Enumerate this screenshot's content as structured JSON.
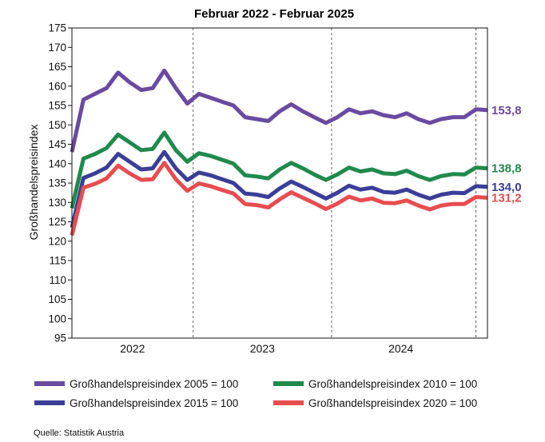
{
  "chart_data": {
    "type": "line",
    "title": "Februar 2022 - Februar 2025",
    "ylabel": "Großhandelspreisindex",
    "ylim": [
      95,
      175
    ],
    "yticks": [
      95,
      100,
      105,
      110,
      115,
      120,
      125,
      130,
      135,
      140,
      145,
      150,
      155,
      160,
      165,
      170,
      175
    ],
    "x_labels": [
      "2022",
      "2023",
      "2024"
    ],
    "x": [
      "2022-02",
      "2022-03",
      "2022-04",
      "2022-05",
      "2022-06",
      "2022-07",
      "2022-08",
      "2022-09",
      "2022-10",
      "2022-11",
      "2022-12",
      "2023-01",
      "2023-02",
      "2023-03",
      "2023-04",
      "2023-05",
      "2023-06",
      "2023-07",
      "2023-08",
      "2023-09",
      "2023-10",
      "2023-11",
      "2023-12",
      "2024-01",
      "2024-02",
      "2024-03",
      "2024-04",
      "2024-05",
      "2024-06",
      "2024-07",
      "2024-08",
      "2024-09",
      "2024-10",
      "2024-11",
      "2024-12",
      "2025-01",
      "2025-02"
    ],
    "grid": "dashed",
    "legend_position": "bottom",
    "series": [
      {
        "name": "Großhandelspreisindex 2005 = 100",
        "color": "#6a4aa0",
        "end_label": "153,8",
        "values": [
          143.0,
          156.5,
          158.0,
          159.5,
          163.5,
          161.0,
          159.0,
          159.5,
          164.0,
          159.5,
          155.5,
          158.0,
          157.0,
          156.0,
          155.0,
          152.0,
          151.5,
          151.0,
          153.5,
          155.3,
          153.5,
          152.0,
          150.5,
          152.0,
          154.0,
          153.0,
          153.5,
          152.5,
          152.0,
          153.0,
          151.5,
          150.5,
          151.5,
          152.0,
          152.0,
          154.0,
          153.8
        ]
      },
      {
        "name": "Großhandelspreisindex 2010 = 100",
        "color": "#1f8a4c",
        "end_label": "138,8",
        "values": [
          128.5,
          141.3,
          142.5,
          144.0,
          147.5,
          145.5,
          143.5,
          143.8,
          148.0,
          143.5,
          140.5,
          142.7,
          142.0,
          141.0,
          140.0,
          137.0,
          136.7,
          136.2,
          138.5,
          140.2,
          138.8,
          137.2,
          135.8,
          137.2,
          139.0,
          138.0,
          138.5,
          137.5,
          137.3,
          138.2,
          136.8,
          135.8,
          136.8,
          137.3,
          137.2,
          139.0,
          138.8
        ]
      },
      {
        "name": "Großhandelspreisindex 2015 = 100",
        "color": "#3a3e99",
        "end_label": "134,0",
        "values": [
          123.5,
          136.3,
          137.5,
          139.0,
          142.5,
          140.5,
          138.5,
          138.8,
          143.0,
          138.8,
          135.8,
          137.7,
          137.0,
          136.0,
          135.0,
          132.3,
          132.0,
          131.4,
          133.6,
          135.4,
          134.0,
          132.5,
          131.0,
          132.5,
          134.3,
          133.3,
          133.8,
          132.7,
          132.5,
          133.3,
          132.0,
          131.0,
          132.0,
          132.5,
          132.4,
          134.2,
          134.0
        ]
      },
      {
        "name": "Großhandelspreisindex 2020 = 100",
        "color": "#e84c4f",
        "end_label": "131,2",
        "values": [
          121.5,
          133.8,
          134.8,
          136.2,
          139.5,
          137.5,
          135.8,
          136.0,
          140.2,
          136.0,
          133.0,
          134.9,
          134.2,
          133.2,
          132.3,
          129.6,
          129.3,
          128.7,
          130.8,
          132.6,
          131.2,
          129.8,
          128.3,
          129.7,
          131.5,
          130.5,
          131.0,
          129.9,
          129.8,
          130.5,
          129.2,
          128.2,
          129.2,
          129.6,
          129.6,
          131.4,
          131.2
        ]
      }
    ]
  },
  "source": "Quelle: Statistik Austria"
}
